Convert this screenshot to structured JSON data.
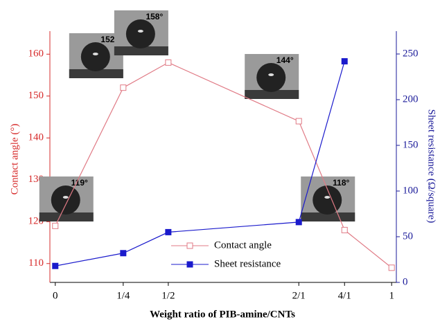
{
  "chart_data": {
    "type": "line",
    "x_label": "Weight ratio of PIB-amine/CNTs",
    "y_label": "Contact angle (°)",
    "y2_label": "Sheet resistance (Ω/square)",
    "x": [
      0,
      0.202,
      0.336,
      0.724,
      0.86,
      1
    ],
    "xlim": [
      -0.016,
      1.014
    ],
    "xticks": [
      {
        "value": 0,
        "label": "0"
      },
      {
        "value": 0.202,
        "label": "1/4"
      },
      {
        "value": 0.336,
        "label": "1/2"
      },
      {
        "value": 0.724,
        "label": "2/1"
      },
      {
        "value": 0.86,
        "label": "4/1"
      },
      {
        "value": 1,
        "label": "1"
      }
    ],
    "ylim": [
      105.5,
      165.5
    ],
    "yticks": [
      110,
      120,
      130,
      140,
      150,
      160
    ],
    "y2lim": [
      0,
      275
    ],
    "y2ticks": [
      0,
      50,
      100,
      150,
      200,
      250
    ],
    "series": [
      {
        "name": "Contact angle",
        "color": "#e07a85",
        "marker": "open-square",
        "values": [
          119,
          152,
          158,
          144,
          118,
          109
        ]
      },
      {
        "name": "Sheet resistance",
        "color": "#1a1acc",
        "marker": "filled-square",
        "axis": "y2",
        "values": [
          18,
          32,
          55,
          66,
          242,
          null
        ]
      }
    ],
    "annotations": [
      "152°",
      "158°",
      "144°",
      "119°",
      "118°"
    ],
    "legend": "lower-center"
  }
}
